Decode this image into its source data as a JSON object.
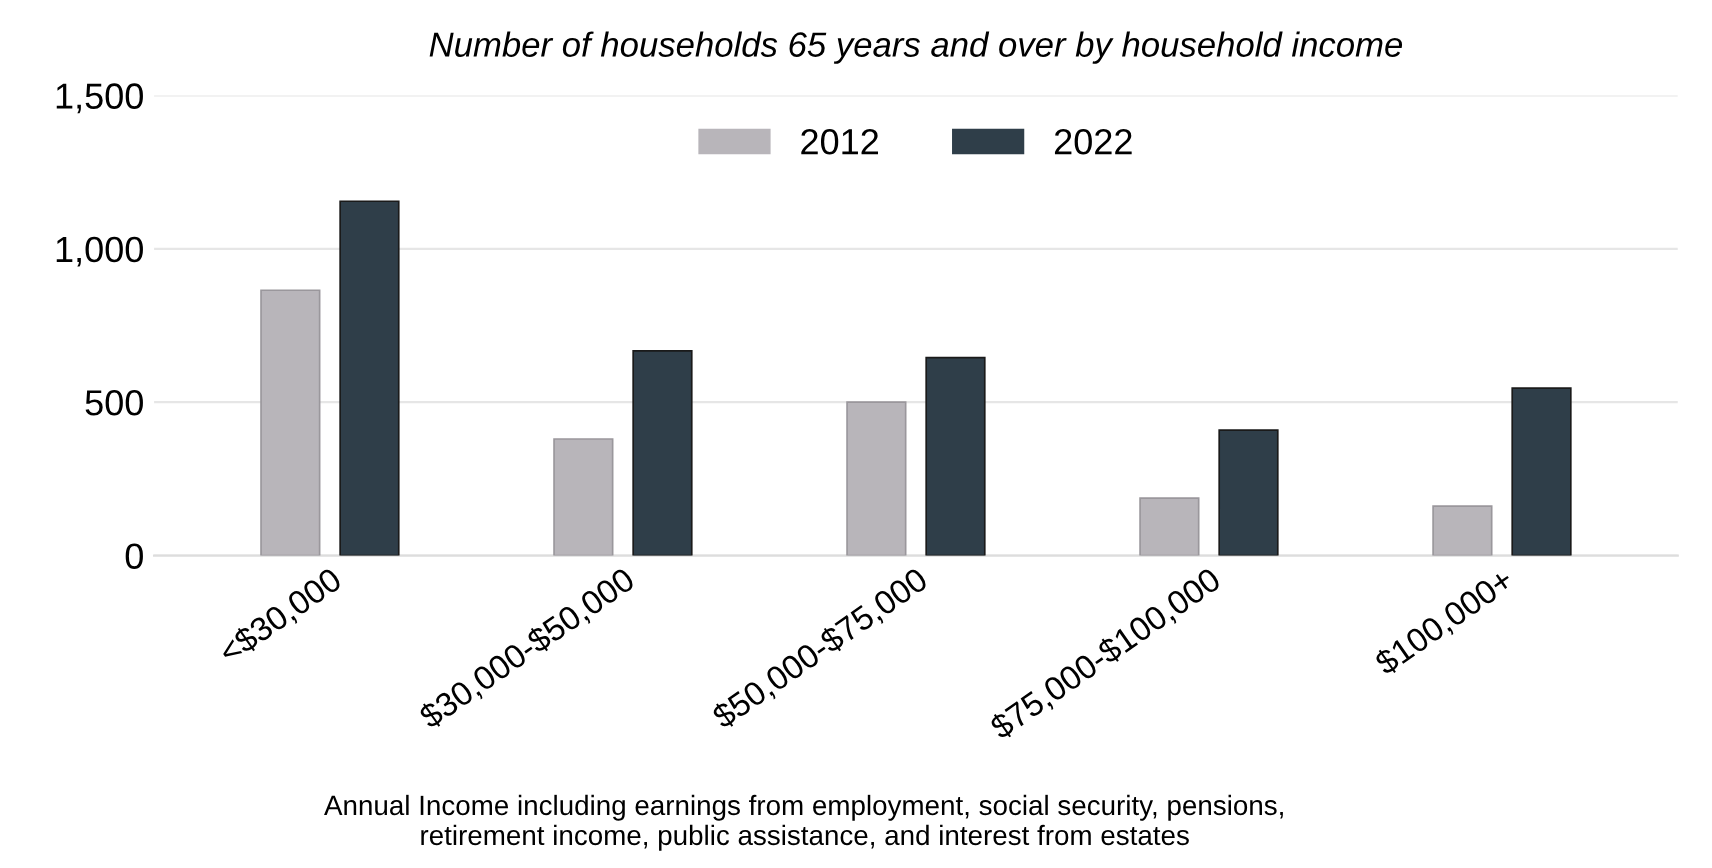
{
  "chart_data": {
    "type": "bar",
    "title": "Number of households 65 years and over by household income",
    "categories": [
      "<$30,000",
      "$30,000-$50,000",
      "$50,000-$75,000",
      "$75,000-$100,000",
      "$100,000+"
    ],
    "series": [
      {
        "name": "2012",
        "color": "#b8b5ba",
        "values": [
          865,
          380,
          500,
          187,
          161
        ]
      },
      {
        "name": "2022",
        "color": "#2f3e49",
        "values": [
          1155,
          667,
          645,
          409,
          546
        ]
      }
    ],
    "ylim": [
      0,
      1500
    ],
    "yticks": [
      {
        "value": 0,
        "label": "0"
      },
      {
        "value": 500,
        "label": "500"
      },
      {
        "value": 1000,
        "label": "1,000"
      },
      {
        "value": 1500,
        "label": "1,500"
      }
    ],
    "grid": "y",
    "legend": "top",
    "annotations": [
      "Annual Income including earnings from employment, social security, pensions,\nretirement income, public assistance, and interest from estates"
    ]
  }
}
